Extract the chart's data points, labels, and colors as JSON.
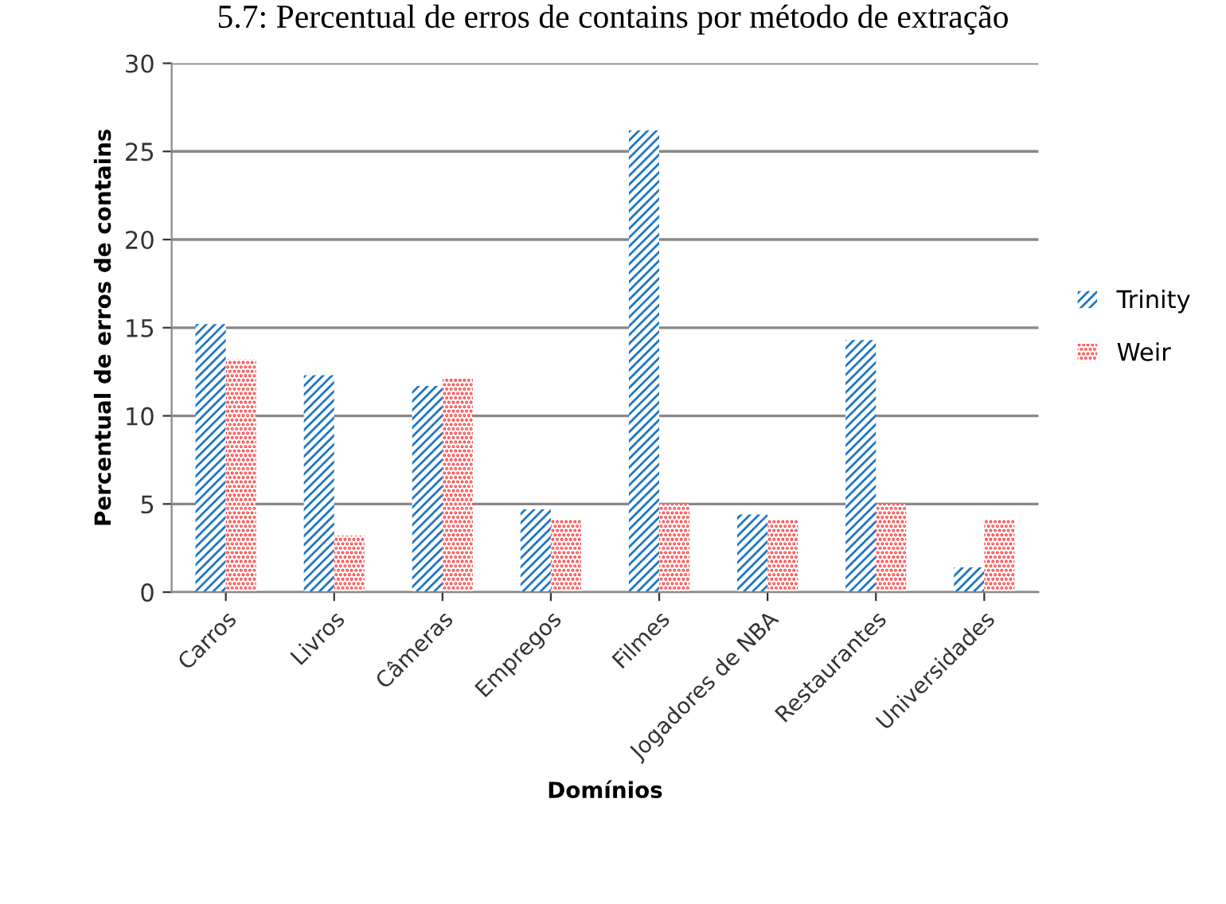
{
  "chart_data": {
    "type": "bar",
    "title": "5.7: Percentual de erros de contains por método de extração",
    "xlabel": "Domínios",
    "ylabel": "Percentual de erros de contains",
    "categories": [
      "Carros",
      "Livros",
      "Câmeras",
      "Empregos",
      "Filmes",
      "Jogadores de NBA",
      "Restaurantes",
      "Universidades"
    ],
    "series": [
      {
        "name": "Trinity",
        "color": "#1f77c4",
        "values": [
          15.2,
          12.3,
          11.7,
          4.7,
          26.2,
          4.4,
          14.3,
          1.4
        ]
      },
      {
        "name": "Weir",
        "color": "#ff3333",
        "values": [
          13.2,
          3.2,
          12.1,
          4.1,
          5.0,
          4.1,
          5.0,
          4.1
        ]
      }
    ],
    "ylim": [
      0,
      30
    ],
    "yticks": [
      0,
      5,
      10,
      15,
      20,
      25,
      30
    ],
    "grid": "y",
    "legend": "right"
  }
}
